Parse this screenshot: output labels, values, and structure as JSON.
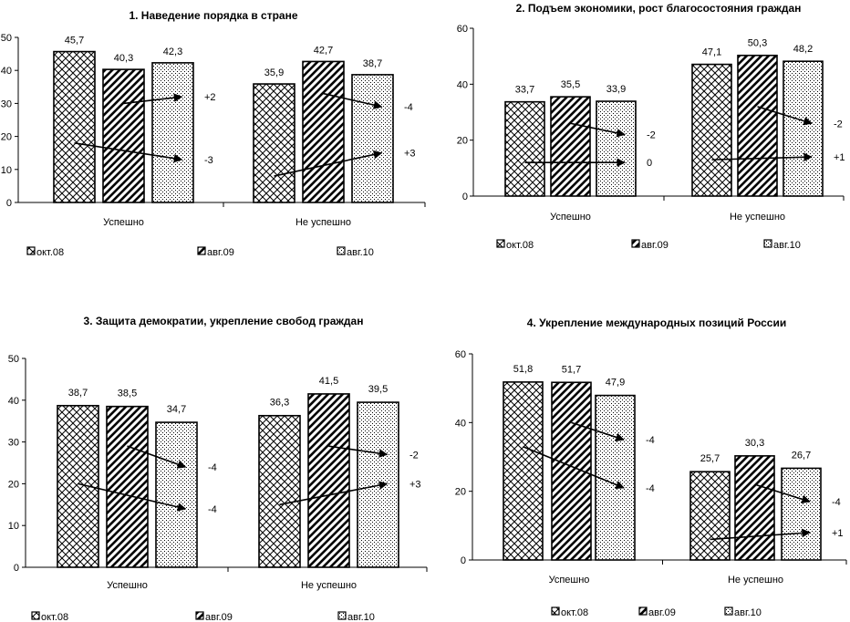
{
  "chart_data": [
    {
      "type": "bar",
      "title": "1. Наведение порядка в стране",
      "categories": [
        "Успешно",
        "Не успешно"
      ],
      "series": [
        {
          "name": "окт.08",
          "values": [
            45.7,
            35.9
          ]
        },
        {
          "name": "авг.09",
          "values": [
            40.3,
            42.7
          ]
        },
        {
          "name": "авг.10",
          "values": [
            42.3,
            38.7
          ]
        }
      ],
      "value_labels": [
        [
          "45,7",
          "35,9"
        ],
        [
          "40,3",
          "42,7"
        ],
        [
          "42,3",
          "38,7"
        ]
      ],
      "ylim": [
        0,
        50
      ],
      "yticks": [
        0,
        10,
        20,
        30,
        40,
        50
      ],
      "annotations": [
        {
          "category": 0,
          "from_series": 1,
          "to_series": 2,
          "text": "+2",
          "from_value": 30,
          "to_value": 32
        },
        {
          "category": 0,
          "from_series": 0,
          "to_series": 2,
          "text": "-3",
          "from_value": 18,
          "to_value": 13
        },
        {
          "category": 1,
          "from_series": 1,
          "to_series": 2,
          "text": "-4",
          "from_value": 33,
          "to_value": 29
        },
        {
          "category": 1,
          "from_series": 0,
          "to_series": 2,
          "text": "+3",
          "from_value": 8,
          "to_value": 15
        }
      ]
    },
    {
      "type": "bar",
      "title": "2. Подъем экономики, рост благосостояния граждан",
      "categories": [
        "Успешно",
        "Не успешно"
      ],
      "series": [
        {
          "name": "окт.08",
          "values": [
            33.7,
            47.1
          ]
        },
        {
          "name": "авг.09",
          "values": [
            35.5,
            50.3
          ]
        },
        {
          "name": "авг.10",
          "values": [
            33.9,
            48.2
          ]
        }
      ],
      "value_labels": [
        [
          "33,7",
          "47,1"
        ],
        [
          "35,5",
          "50,3"
        ],
        [
          "33,9",
          "48,2"
        ]
      ],
      "ylim": [
        0,
        60
      ],
      "yticks": [
        0,
        20,
        40,
        60
      ],
      "annotations": [
        {
          "category": 0,
          "from_series": 1,
          "to_series": 2,
          "text": "-2",
          "from_value": 26,
          "to_value": 22
        },
        {
          "category": 0,
          "from_series": 0,
          "to_series": 2,
          "text": "0",
          "from_value": 12,
          "to_value": 12
        },
        {
          "category": 1,
          "from_series": 1,
          "to_series": 2,
          "text": "-2",
          "from_value": 32,
          "to_value": 26
        },
        {
          "category": 1,
          "from_series": 0,
          "to_series": 2,
          "text": "+1",
          "from_value": 13,
          "to_value": 14
        }
      ]
    },
    {
      "type": "bar",
      "title": "3. Защита демократии, укрепление свобод граждан",
      "categories": [
        "Успешно",
        "Не успешно"
      ],
      "series": [
        {
          "name": "окт.08",
          "values": [
            38.7,
            36.3
          ]
        },
        {
          "name": "авг.09",
          "values": [
            38.5,
            41.5
          ]
        },
        {
          "name": "авг.10",
          "values": [
            34.7,
            39.5
          ]
        }
      ],
      "value_labels": [
        [
          "38,7",
          "36,3"
        ],
        [
          "38,5",
          "41,5"
        ],
        [
          "34,7",
          "39,5"
        ]
      ],
      "ylim": [
        0,
        50
      ],
      "yticks": [
        0,
        10,
        20,
        30,
        40,
        50
      ],
      "annotations": [
        {
          "category": 0,
          "from_series": 1,
          "to_series": 2,
          "text": "-4",
          "from_value": 29,
          "to_value": 24
        },
        {
          "category": 0,
          "from_series": 0,
          "to_series": 2,
          "text": "-4",
          "from_value": 20,
          "to_value": 14
        },
        {
          "category": 1,
          "from_series": 1,
          "to_series": 2,
          "text": "-2",
          "from_value": 29,
          "to_value": 27
        },
        {
          "category": 1,
          "from_series": 0,
          "to_series": 2,
          "text": "+3",
          "from_value": 15,
          "to_value": 20
        }
      ]
    },
    {
      "type": "bar",
      "title": "4. Укрепление международных позиций России",
      "categories": [
        "Успешно",
        "Не успешно"
      ],
      "series": [
        {
          "name": "окт.08",
          "values": [
            51.8,
            25.7
          ]
        },
        {
          "name": "авг.09",
          "values": [
            51.7,
            30.3
          ]
        },
        {
          "name": "авг.10",
          "values": [
            47.9,
            26.7
          ]
        }
      ],
      "value_labels": [
        [
          "51,8",
          "25,7"
        ],
        [
          "51,7",
          "30,3"
        ],
        [
          "47,9",
          "26,7"
        ]
      ],
      "ylim": [
        0,
        60
      ],
      "yticks": [
        0,
        20,
        40,
        60
      ],
      "annotations": [
        {
          "category": 0,
          "from_series": 1,
          "to_series": 2,
          "text": "-4",
          "from_value": 40,
          "to_value": 35
        },
        {
          "category": 0,
          "from_series": 0,
          "to_series": 2,
          "text": "-4",
          "from_value": 33,
          "to_value": 21
        },
        {
          "category": 1,
          "from_series": 1,
          "to_series": 2,
          "text": "-4",
          "from_value": 22,
          "to_value": 17
        },
        {
          "category": 1,
          "from_series": 0,
          "to_series": 2,
          "text": "+1",
          "from_value": 6,
          "to_value": 8
        }
      ]
    }
  ]
}
